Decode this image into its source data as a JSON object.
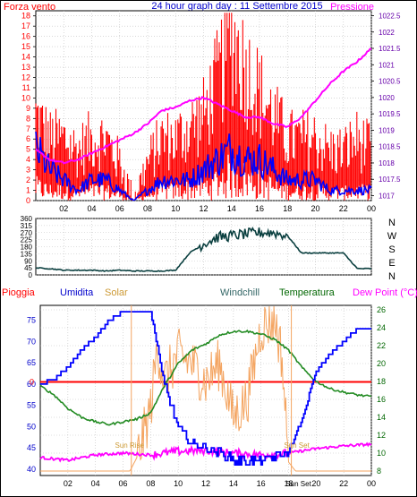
{
  "header": {
    "left_title": "Forza vento",
    "center_title": "24 hour graph day : 11 Settembre 2015",
    "right_title": "Pressione"
  },
  "legend_row": {
    "pioggia": "Pioggia",
    "umidita": "Umidita",
    "solar": "Solar",
    "windchill": "Windchill",
    "temperatura": "Temperatura",
    "dewpoint": "Dew Point (°C)"
  },
  "colors": {
    "red": "#ff0000",
    "blue": "#0000ff",
    "magenta": "#ff00ff",
    "darkgreen": "#006600",
    "green": "#228b22",
    "orange": "#f4a460",
    "teal": "#0a3f3f",
    "grid": "#c0c0c0",
    "purple_axis": "#6600aa"
  },
  "chart_data": [
    {
      "type": "line",
      "title": "24 hour graph day : 11 Settembre 2015",
      "x_ticks": [
        "02",
        "04",
        "06",
        "08",
        "10",
        "12",
        "14",
        "16",
        "18",
        "20",
        "22",
        "00"
      ],
      "xlim": [
        0,
        24
      ],
      "left_axis": {
        "label": "Forza vento",
        "ticks": [
          0,
          1,
          2,
          3,
          4,
          5,
          6,
          7,
          8,
          9,
          10,
          11,
          12,
          13,
          14,
          15,
          16,
          17,
          18
        ],
        "ylim": [
          0,
          18.5
        ]
      },
      "right_axis": {
        "label": "Pressione",
        "ticks": [
          "1017",
          "1017.5",
          "1018",
          "1018.5",
          "1019",
          "1019.5",
          "1020",
          "1020.5",
          "1021",
          "1021.5",
          "1022",
          "1022.5"
        ],
        "ylim": [
          1016.85,
          1022.65
        ]
      },
      "series": [
        {
          "name": "Pressione",
          "color": "magenta",
          "axis": "right",
          "x": [
            0,
            1,
            2,
            3,
            4,
            5,
            6,
            7,
            8,
            9,
            10,
            11,
            12,
            13,
            14,
            15,
            16,
            17,
            18,
            19,
            20,
            21,
            22,
            23,
            24
          ],
          "y": [
            1018.4,
            1018.1,
            1018.0,
            1018.1,
            1018.3,
            1018.5,
            1018.7,
            1018.9,
            1019.2,
            1019.6,
            1019.7,
            1019.9,
            1020.0,
            1019.8,
            1019.6,
            1019.4,
            1019.4,
            1019.2,
            1019.1,
            1019.4,
            1019.9,
            1020.4,
            1020.8,
            1021.1,
            1021.5
          ]
        },
        {
          "name": "gust",
          "color": "red",
          "axis": "left",
          "x": [
            0,
            1,
            2,
            3,
            4,
            5,
            6,
            7,
            8,
            9,
            10,
            11,
            12,
            13,
            14,
            15,
            16,
            17,
            18,
            19,
            20,
            21,
            22,
            23,
            24
          ],
          "y": [
            7,
            5,
            5,
            4,
            5,
            5,
            3,
            0,
            3,
            5,
            5,
            6,
            7,
            10,
            14,
            11,
            9,
            7,
            5,
            5,
            5,
            4,
            4,
            5,
            4
          ]
        },
        {
          "name": "average",
          "color": "blue",
          "axis": "left",
          "x": [
            0,
            1,
            2,
            3,
            4,
            5,
            6,
            7,
            8,
            9,
            10,
            11,
            12,
            13,
            14,
            15,
            16,
            17,
            18,
            19,
            20,
            21,
            22,
            23,
            24
          ],
          "y": [
            5,
            3,
            2,
            1,
            2,
            2,
            1,
            0,
            1,
            2,
            2,
            2,
            3,
            4,
            5,
            4,
            4,
            3,
            2,
            2,
            2,
            1,
            1,
            1,
            1
          ]
        }
      ]
    },
    {
      "type": "line",
      "right_axis_labels": [
        "N",
        "W",
        "S",
        "E",
        "N"
      ],
      "left_axis": {
        "ticks": [
          0,
          45,
          90,
          135,
          180,
          225,
          270,
          315,
          360
        ],
        "ylim": [
          0,
          360
        ]
      },
      "xlim": [
        0,
        24
      ],
      "series": [
        {
          "name": "direction",
          "color": "teal",
          "x": [
            0,
            1,
            2,
            3,
            4,
            5,
            6,
            7,
            8,
            9,
            10,
            11,
            12,
            13,
            14,
            15,
            16,
            17,
            18,
            19,
            20,
            21,
            22,
            23,
            24
          ],
          "y": [
            45,
            40,
            30,
            30,
            30,
            25,
            30,
            25,
            25,
            25,
            30,
            140,
            200,
            240,
            250,
            260,
            270,
            270,
            250,
            140,
            140,
            140,
            140,
            40,
            40
          ]
        }
      ]
    },
    {
      "type": "line",
      "x_ticks": [
        "02",
        "04",
        "06",
        "08",
        "10",
        "12",
        "14",
        "16",
        "18",
        "20",
        "22",
        "00"
      ],
      "xlim": [
        0,
        24
      ],
      "left_axis": {
        "label": "Umidita",
        "ticks": [
          40,
          45,
          50,
          55,
          60,
          65,
          70,
          75
        ],
        "ylim": [
          38.5,
          78.5
        ]
      },
      "right_axis": {
        "label": "Temperatura",
        "ticks": [
          8,
          10,
          12,
          14,
          16,
          18,
          20,
          22,
          24,
          26
        ],
        "ylim": [
          7.5,
          26.5
        ]
      },
      "pioggia_marker": {
        "label": "0",
        "value": 0
      },
      "annotations": [
        "Sun Rise",
        "Sun Set",
        "Sun Set"
      ],
      "series": [
        {
          "name": "Umidita",
          "color": "blue",
          "axis": "left",
          "x": [
            0,
            1,
            2,
            3,
            4,
            5,
            6,
            7,
            8,
            9,
            10,
            11,
            12,
            13,
            14,
            15,
            16,
            17,
            18,
            19,
            20,
            21,
            22,
            23,
            24
          ],
          "y": [
            60,
            61,
            64,
            68,
            71,
            75,
            77,
            77,
            77,
            60,
            50,
            46,
            45,
            44,
            42,
            42,
            42,
            43,
            44,
            52,
            63,
            67,
            70,
            73,
            73
          ]
        },
        {
          "name": "Temperatura",
          "color": "darkgreen",
          "axis": "right",
          "x": [
            0,
            1,
            2,
            3,
            4,
            5,
            6,
            7,
            8,
            9,
            10,
            11,
            12,
            13,
            14,
            15,
            16,
            17,
            18,
            19,
            20,
            21,
            22,
            23,
            24
          ],
          "y": [
            17.5,
            16.5,
            15,
            14,
            13.5,
            13.2,
            13.5,
            13.8,
            14.5,
            17.5,
            20,
            21.5,
            22.2,
            23.2,
            23.6,
            23.6,
            23.3,
            22.7,
            21.5,
            19.5,
            18,
            17.2,
            16.8,
            16.5,
            16.3
          ]
        },
        {
          "name": "Solar",
          "color": "orange",
          "axis": "right",
          "x": [
            0,
            6.5,
            7,
            7.5,
            8,
            8.5,
            9,
            10,
            11,
            12,
            13,
            14,
            15,
            16,
            17,
            17.5,
            18,
            18.5,
            19,
            24
          ],
          "y": [
            8,
            8,
            9.5,
            12,
            15,
            22,
            18,
            21,
            20,
            18,
            20,
            14,
            16,
            24,
            25,
            21,
            9,
            8,
            8,
            8
          ]
        },
        {
          "name": "Dew Point",
          "color": "magenta",
          "axis": "right",
          "x": [
            0,
            2,
            4,
            6,
            8,
            10,
            12,
            14,
            16,
            18,
            20,
            22,
            24
          ],
          "y": [
            9.5,
            9.2,
            9.8,
            10.0,
            9.8,
            10.2,
            10.3,
            10.0,
            9.8,
            10.0,
            10.5,
            10.8,
            11.0
          ]
        }
      ]
    }
  ]
}
